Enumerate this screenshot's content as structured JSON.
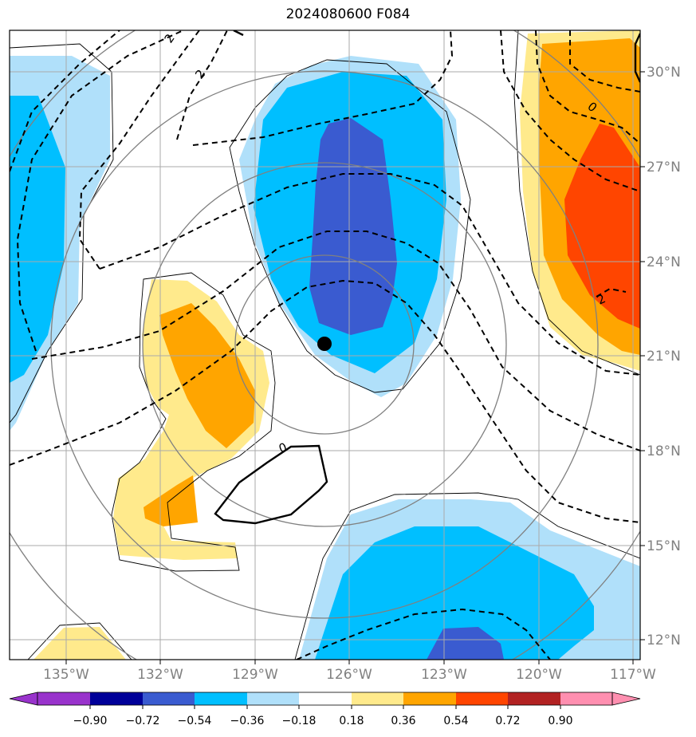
{
  "title": "2024080600 F084",
  "map": {
    "lon_ticks": [
      "135°W",
      "132°W",
      "129°W",
      "126°W",
      "123°W",
      "120°W",
      "117°W"
    ],
    "lat_ticks": [
      "30°N",
      "27°N",
      "24°N",
      "21°N",
      "18°N",
      "15°N",
      "12°N"
    ],
    "contour_labels": [
      "2",
      "2",
      "0",
      "0",
      "2"
    ],
    "storm_center_marker": "black-dot"
  },
  "colorbar": {
    "ticks": [
      "−0.90",
      "−0.72",
      "−0.54",
      "−0.36",
      "−0.18",
      "0.18",
      "0.36",
      "0.54",
      "0.72",
      "0.90"
    ],
    "colors": [
      "#9933cc",
      "#000099",
      "#3a5bd0",
      "#00bfff",
      "#b0e0fa",
      "#ffffff",
      "#ffea8c",
      "#ffa500",
      "#ff4500",
      "#b22222",
      "#ff8fb0"
    ]
  }
}
